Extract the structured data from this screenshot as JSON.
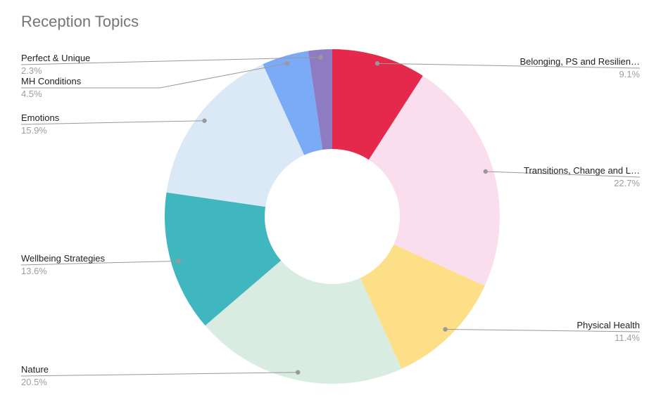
{
  "title": "Reception Topics",
  "chart_data": {
    "type": "pie",
    "subtype": "donut",
    "title": "Reception Topics",
    "unit": "%",
    "start_angle_deg": 0,
    "direction": "clockwise",
    "legend_position": "labeled-callouts",
    "title_color": "#757575",
    "label_color": "#202124",
    "pct_color": "#9e9e9e",
    "callout_line_color": "#999999",
    "background_color": "#ffffff",
    "slices": [
      {
        "label": "Belonging, PS and Resilien…",
        "value": 9.1,
        "pct_text": "9.1%",
        "color": "#e5294d"
      },
      {
        "label": "Transitions, Change and L…",
        "value": 22.7,
        "pct_text": "22.7%",
        "color": "#fbdeed"
      },
      {
        "label": "Physical Health",
        "value": 11.4,
        "pct_text": "11.4%",
        "color": "#fcdf87"
      },
      {
        "label": "Nature",
        "value": 20.5,
        "pct_text": "20.5%",
        "color": "#d9ece1"
      },
      {
        "label": "Wellbeing Strategies",
        "value": 13.6,
        "pct_text": "13.6%",
        "color": "#40b7bf"
      },
      {
        "label": "Emotions",
        "value": 15.9,
        "pct_text": "15.9%",
        "color": "#dbe9f7"
      },
      {
        "label": "MH Conditions",
        "value": 4.5,
        "pct_text": "4.5%",
        "color": "#7baaf7"
      },
      {
        "label": "Perfect & Unique",
        "value": 2.3,
        "pct_text": "2.3%",
        "color": "#8e7cc3"
      }
    ]
  }
}
